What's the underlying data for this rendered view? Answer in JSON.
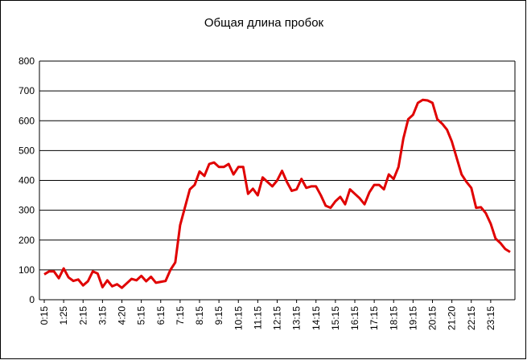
{
  "chart_data": {
    "type": "line",
    "title": "Общая длина пробок",
    "categories": [
      "0:15",
      null,
      null,
      null,
      "1:25",
      null,
      null,
      null,
      "2:15",
      null,
      null,
      null,
      "3:15",
      null,
      null,
      null,
      "4:20",
      null,
      null,
      null,
      "5:15",
      null,
      null,
      null,
      "6:15",
      null,
      null,
      null,
      "7:15",
      null,
      null,
      null,
      "8:15",
      null,
      null,
      null,
      "9:15",
      null,
      null,
      null,
      "10:15",
      null,
      null,
      null,
      "11:15",
      null,
      null,
      null,
      "12:15",
      null,
      null,
      null,
      "13:15",
      null,
      null,
      null,
      "14:15",
      null,
      null,
      null,
      "15:15",
      null,
      null,
      null,
      "16:15",
      null,
      null,
      null,
      "17:15",
      null,
      null,
      null,
      "18:15",
      null,
      null,
      null,
      "19:15",
      null,
      null,
      null,
      "20:15",
      null,
      null,
      null,
      "21:20",
      null,
      null,
      null,
      "22:15",
      null,
      null,
      null,
      "23:15",
      null,
      null,
      null,
      null
    ],
    "series": [
      {
        "color": "#e00000",
        "values": [
          85,
          95,
          95,
          72,
          105,
          75,
          63,
          68,
          48,
          62,
          95,
          88,
          42,
          65,
          45,
          52,
          40,
          55,
          70,
          65,
          80,
          62,
          77,
          57,
          60,
          63,
          100,
          125,
          250,
          310,
          370,
          385,
          430,
          415,
          455,
          460,
          445,
          445,
          455,
          420,
          445,
          445,
          355,
          372,
          350,
          410,
          395,
          380,
          400,
          432,
          395,
          365,
          370,
          405,
          375,
          380,
          380,
          350,
          315,
          308,
          330,
          345,
          320,
          370,
          355,
          340,
          320,
          360,
          385,
          385,
          370,
          420,
          405,
          445,
          540,
          605,
          620,
          660,
          670,
          668,
          660,
          605,
          590,
          570,
          530,
          475,
          420,
          395,
          375,
          308,
          310,
          290,
          255,
          205,
          190,
          170,
          160
        ]
      }
    ],
    "ylim": [
      0,
      800
    ],
    "yticks": [
      0,
      100,
      200,
      300,
      400,
      500,
      600,
      700,
      800
    ],
    "grid": true
  }
}
